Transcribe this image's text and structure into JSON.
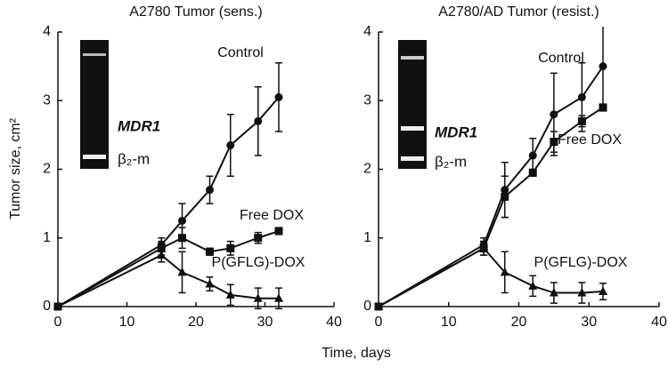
{
  "axis_labels": {
    "x": "Time, days",
    "y": "Tumor size, cm²"
  },
  "chart_data": [
    {
      "type": "line",
      "title": "A2780 Tumor (sens.)",
      "inset_labels": [
        "MDR1",
        "β₂-m"
      ],
      "x": [
        0,
        15,
        18,
        22,
        25,
        29,
        32
      ],
      "xlim": [
        0,
        40
      ],
      "xticks": [
        0,
        10,
        20,
        30,
        40
      ],
      "ylim": [
        0,
        4
      ],
      "yticks": [
        0,
        1,
        2,
        3,
        4
      ],
      "series": [
        {
          "name": "Control",
          "color": "#111111",
          "marker": "circle",
          "values": [
            0,
            0.9,
            1.25,
            1.7,
            2.35,
            2.7,
            3.05
          ],
          "errors": [
            0,
            0.1,
            0.25,
            0.2,
            0.45,
            0.5,
            0.5
          ]
        },
        {
          "name": "Free DOX",
          "color": "#111111",
          "marker": "square",
          "values": [
            0,
            0.85,
            1.0,
            0.8,
            0.85,
            1.0,
            1.1
          ],
          "errors": [
            0,
            0.1,
            0.15,
            0.05,
            0.1,
            0.08,
            0.05
          ]
        },
        {
          "name": "P(GFLG)-DOX",
          "color": "#111111",
          "marker": "triangle",
          "values": [
            0,
            0.75,
            0.5,
            0.33,
            0.17,
            0.12,
            0.12
          ],
          "errors": [
            0,
            0.1,
            0.3,
            0.1,
            0.15,
            0.15,
            0.15
          ]
        }
      ]
    },
    {
      "type": "line",
      "title": "A2780/AD Tumor (resist.)",
      "inset_labels": [
        "MDR1",
        "β₂-m"
      ],
      "x": [
        0,
        15,
        18,
        22,
        25,
        29,
        32
      ],
      "xlim": [
        0,
        40
      ],
      "xticks": [
        0,
        10,
        20,
        30,
        40
      ],
      "ylim": [
        0,
        4
      ],
      "yticks": [
        0,
        1,
        2,
        3,
        4
      ],
      "series": [
        {
          "name": "Control",
          "color": "#111111",
          "marker": "circle",
          "values": [
            0,
            0.9,
            1.7,
            2.2,
            2.8,
            3.05,
            3.5
          ],
          "errors": [
            0,
            0.1,
            0.4,
            0.25,
            0.6,
            0.5,
            0.6
          ]
        },
        {
          "name": "Free DOX",
          "color": "#111111",
          "marker": "square",
          "values": [
            0,
            0.85,
            1.6,
            1.95,
            2.4,
            2.7,
            2.9
          ],
          "errors": [
            0,
            0.1,
            0.3,
            0.05,
            0.15,
            0.08,
            0.05
          ]
        },
        {
          "name": "P(GFLG)-DOX",
          "color": "#111111",
          "marker": "triangle",
          "values": [
            0,
            0.85,
            0.5,
            0.3,
            0.2,
            0.2,
            0.22
          ],
          "errors": [
            0,
            0.1,
            0.3,
            0.15,
            0.15,
            0.15,
            0.12
          ]
        }
      ]
    }
  ]
}
